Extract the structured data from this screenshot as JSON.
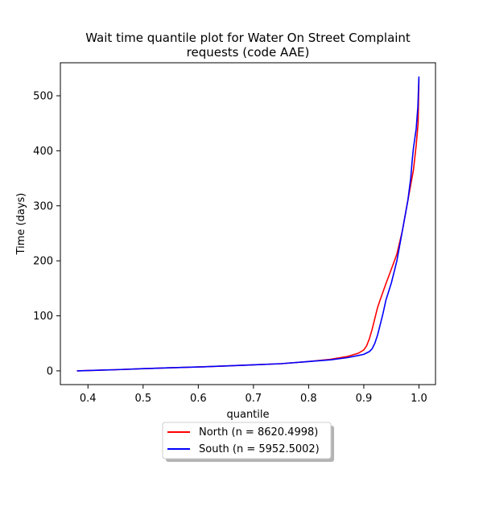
{
  "chart_data": {
    "type": "line",
    "title_lines": [
      "Wait time quantile plot for Water On Street Complaint",
      "requests (code AAE)"
    ],
    "xlabel": "quantile",
    "ylabel": "Time (days)",
    "xlim": [
      0.35,
      1.03
    ],
    "ylim": [
      -25,
      560
    ],
    "xticks": [
      0.4,
      0.5,
      0.6,
      0.7,
      0.8,
      0.9,
      1.0
    ],
    "xtick_labels": [
      "0.4",
      "0.5",
      "0.6",
      "0.7",
      "0.8",
      "0.9",
      "1.0"
    ],
    "yticks": [
      0,
      100,
      200,
      300,
      400,
      500
    ],
    "ytick_labels": [
      "0",
      "100",
      "200",
      "300",
      "400",
      "500"
    ],
    "grid": false,
    "legend_placement": "below-center",
    "series": [
      {
        "name": "North (n = 8620.4998)",
        "color": "#ff0000",
        "x": [
          0.38,
          0.45,
          0.5,
          0.55,
          0.6,
          0.65,
          0.7,
          0.75,
          0.8,
          0.84,
          0.87,
          0.89,
          0.9,
          0.905,
          0.91,
          0.915,
          0.92,
          0.925,
          0.93,
          0.94,
          0.95,
          0.96,
          0.97,
          0.98,
          0.99,
          0.995,
          0.9985,
          1.0
        ],
        "y": [
          0,
          2,
          4,
          5.5,
          7,
          9,
          11,
          13,
          17,
          21,
          26,
          32,
          38,
          45,
          58,
          75,
          95,
          115,
          130,
          158,
          185,
          212,
          255,
          310,
          365,
          410,
          450,
          530
        ]
      },
      {
        "name": "South (n = 5952.5002)",
        "color": "#0000ff",
        "x": [
          0.38,
          0.45,
          0.5,
          0.55,
          0.6,
          0.65,
          0.7,
          0.75,
          0.8,
          0.84,
          0.87,
          0.89,
          0.9,
          0.91,
          0.915,
          0.92,
          0.925,
          0.93,
          0.935,
          0.94,
          0.95,
          0.96,
          0.97,
          0.98,
          0.985,
          0.988,
          0.99,
          0.995,
          0.998,
          1.0
        ],
        "y": [
          0,
          2,
          4,
          5.5,
          7,
          9,
          11,
          13,
          17,
          20,
          24,
          28,
          30,
          35,
          40,
          50,
          65,
          85,
          105,
          128,
          160,
          200,
          255,
          310,
          350,
          385,
          405,
          440,
          480,
          535
        ]
      }
    ]
  }
}
